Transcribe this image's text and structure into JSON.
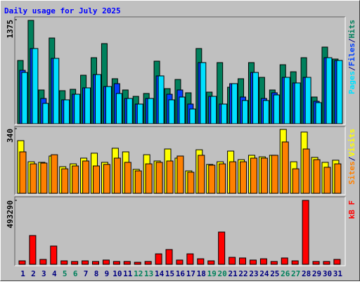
{
  "title": "Daily usage for July 2025",
  "separator": "/",
  "chart_data": [
    {
      "type": "bar",
      "series": [
        {
          "name": "Hits",
          "color": "#00805c",
          "values": [
            836,
            1366,
            446,
            1133,
            437,
            455,
            641,
            873,
            1059,
            595,
            446,
            362,
            400,
            827,
            464,
            585,
            409,
            994,
            418,
            808,
            483,
            595,
            808,
            613,
            446,
            780,
            687,
            873,
            353,
            1013,
            855
          ]
        },
        {
          "name": "Files",
          "color": "#0040ff",
          "values": [
            706,
            994,
            334,
            864,
            316,
            390,
            474,
            650,
            492,
            530,
            334,
            260,
            334,
            632,
            390,
            446,
            260,
            808,
            362,
            260,
            530,
            353,
            678,
            334,
            409,
            613,
            539,
            613,
            297,
            873,
            836
          ]
        },
        {
          "name": "Pages",
          "color": "#00e0ff",
          "values": [
            678,
            994,
            269,
            864,
            316,
            390,
            474,
            650,
            492,
            400,
            334,
            260,
            334,
            632,
            316,
            353,
            195,
            808,
            362,
            260,
            530,
            307,
            678,
            307,
            381,
            613,
            539,
            613,
            279,
            873,
            836
          ]
        }
      ],
      "ylim": [
        0,
        1375
      ],
      "yticks": [
        1375
      ]
    },
    {
      "type": "bar",
      "series": [
        {
          "name": "Visits",
          "color": "#ffff00",
          "values": [
            277,
            166,
            163,
            196,
            140,
            155,
            185,
            211,
            163,
            237,
            218,
            126,
            203,
            170,
            233,
            185,
            118,
            229,
            152,
            166,
            222,
            177,
            200,
            192,
            200,
            336,
            166,
            322,
            189,
            163,
            174
          ]
        },
        {
          "name": "Sites",
          "color": "#ff8000",
          "values": [
            218,
            155,
            159,
            203,
            129,
            144,
            170,
            144,
            152,
            185,
            163,
            118,
            155,
            163,
            170,
            196,
            111,
            200,
            148,
            155,
            166,
            166,
            185,
            185,
            200,
            270,
            129,
            233,
            177,
            137,
            155
          ]
        }
      ],
      "ylim": [
        0,
        340
      ],
      "yticks": [
        340
      ]
    },
    {
      "type": "bar",
      "categories": [
        "1",
        "2",
        "3",
        "4",
        "5",
        "6",
        "7",
        "8",
        "9",
        "10",
        "11",
        "12",
        "13",
        "14",
        "15",
        "16",
        "17",
        "18",
        "19",
        "20",
        "21",
        "22",
        "23",
        "24",
        "25",
        "26",
        "27",
        "28",
        "29",
        "30",
        "31"
      ],
      "category_colors": [
        "#000080",
        "#000080",
        "#000080",
        "#000080",
        "#00805c",
        "#00805c",
        "#000080",
        "#000080",
        "#000080",
        "#000080",
        "#000080",
        "#00805c",
        "#00805c",
        "#000080",
        "#000080",
        "#000080",
        "#000080",
        "#000080",
        "#00805c",
        "#00805c",
        "#000080",
        "#000080",
        "#000080",
        "#000080",
        "#000080",
        "#00805c",
        "#00805c",
        "#000080",
        "#000080",
        "#000080",
        "#000080"
      ],
      "series": [
        {
          "name": "kB F",
          "color": "#ff0000",
          "values": [
            27000,
            222000,
            38000,
            141000,
            27000,
            22000,
            27000,
            22000,
            33000,
            22000,
            22000,
            16000,
            22000,
            81000,
            114000,
            33000,
            81000,
            43000,
            27000,
            249000,
            54000,
            49000,
            33000,
            43000,
            22000,
            49000,
            27000,
            493290,
            22000,
            22000,
            38000
          ]
        }
      ],
      "ylim": [
        0,
        493290
      ],
      "yticks": [
        493290
      ]
    }
  ]
}
